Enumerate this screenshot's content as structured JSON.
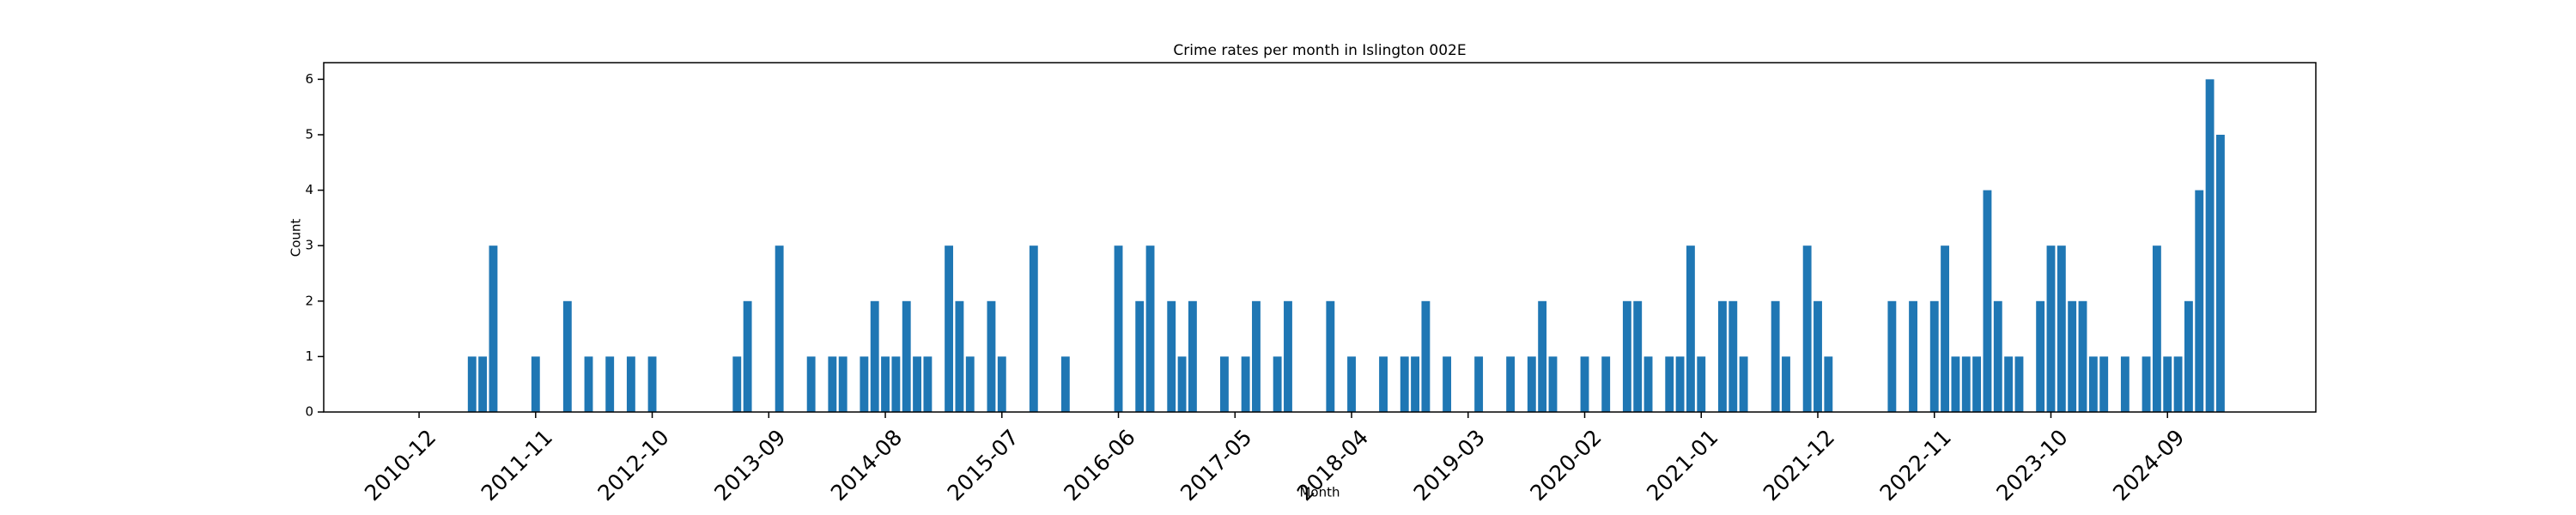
{
  "chart_data": {
    "type": "bar",
    "title": "Crime rates per month in Islington 002E",
    "xlabel": "Month",
    "ylabel": "Count",
    "color": "#1f77b4",
    "x": [
      "2011-05",
      "2011-06",
      "2011-07",
      "2011-11",
      "2012-02",
      "2012-04",
      "2012-06",
      "2012-08",
      "2012-10",
      "2013-06",
      "2013-07",
      "2013-10",
      "2014-01",
      "2014-03",
      "2014-04",
      "2014-06",
      "2014-07",
      "2014-08",
      "2014-09",
      "2014-10",
      "2014-11",
      "2014-12",
      "2015-02",
      "2015-03",
      "2015-04",
      "2015-06",
      "2015-07",
      "2015-10",
      "2016-01",
      "2016-06",
      "2016-08",
      "2016-09",
      "2016-11",
      "2016-12",
      "2017-01",
      "2017-04",
      "2017-06",
      "2017-07",
      "2017-09",
      "2017-10",
      "2018-02",
      "2018-04",
      "2018-07",
      "2018-09",
      "2018-10",
      "2018-11",
      "2019-01",
      "2019-04",
      "2019-07",
      "2019-09",
      "2019-10",
      "2019-11",
      "2020-02",
      "2020-04",
      "2020-06",
      "2020-07",
      "2020-08",
      "2020-10",
      "2020-11",
      "2020-12",
      "2021-01",
      "2021-03",
      "2021-04",
      "2021-05",
      "2021-08",
      "2021-09",
      "2021-11",
      "2021-12",
      "2022-01",
      "2022-07",
      "2022-09",
      "2022-11",
      "2022-12",
      "2023-01",
      "2023-02",
      "2023-03",
      "2023-04",
      "2023-05",
      "2023-06",
      "2023-07",
      "2023-09",
      "2023-10",
      "2023-11",
      "2023-12",
      "2024-01",
      "2024-02",
      "2024-03",
      "2024-05",
      "2024-07",
      "2024-08",
      "2024-09",
      "2024-10",
      "2024-11",
      "2024-12",
      "2025-01",
      "2025-02"
    ],
    "values": [
      1,
      1,
      3,
      1,
      2,
      1,
      1,
      1,
      1,
      1,
      2,
      3,
      1,
      1,
      1,
      1,
      2,
      1,
      1,
      2,
      1,
      1,
      3,
      2,
      1,
      2,
      1,
      3,
      1,
      3,
      2,
      3,
      2,
      1,
      2,
      1,
      1,
      2,
      1,
      2,
      2,
      1,
      1,
      1,
      1,
      2,
      1,
      1,
      1,
      1,
      2,
      1,
      1,
      1,
      2,
      2,
      1,
      1,
      1,
      3,
      1,
      2,
      2,
      1,
      2,
      1,
      3,
      2,
      1,
      2,
      2,
      2,
      3,
      1,
      1,
      1,
      4,
      2,
      1,
      1,
      2,
      3,
      3,
      2,
      2,
      1,
      1,
      1,
      1,
      3,
      1,
      1,
      2,
      4,
      6,
      5
    ],
    "xlim": [
      "2010-03",
      "2025-11"
    ],
    "xticks": [
      "2010-12",
      "2011-11",
      "2012-10",
      "2013-09",
      "2014-08",
      "2015-07",
      "2016-06",
      "2017-05",
      "2018-04",
      "2019-03",
      "2020-02",
      "2021-01",
      "2021-12",
      "2022-11",
      "2023-10",
      "2024-09"
    ],
    "ylim": [
      0,
      6.3
    ],
    "yticks": [
      0,
      1,
      2,
      3,
      4,
      5,
      6
    ]
  }
}
